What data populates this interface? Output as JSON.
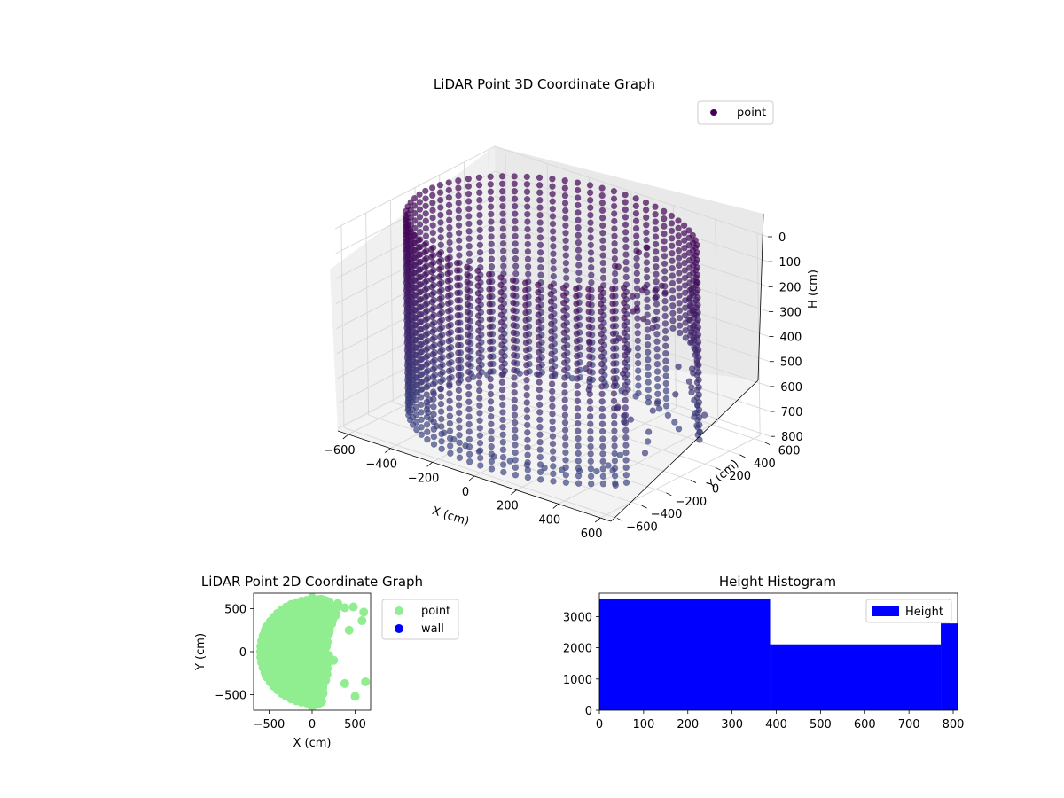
{
  "chart_data": [
    {
      "type": "scatter",
      "projection": "3d",
      "title": "LiDAR Point 3D Coordinate Graph",
      "xlabel": "X (cm)",
      "ylabel": "Y (cm)",
      "zlabel": "H (cm)",
      "xlim": [
        -650,
        650
      ],
      "ylim": [
        -650,
        650
      ],
      "zlim": [
        810,
        0
      ],
      "z_axis_inverted": true,
      "xticks": [
        "−600",
        "−400",
        "−200",
        "0",
        "200",
        "400",
        "600"
      ],
      "yticks": [
        "−600",
        "−400",
        "−200",
        "0",
        "200",
        "400",
        "600"
      ],
      "zticks": [
        "0",
        "100",
        "200",
        "300",
        "400",
        "500",
        "600",
        "700",
        "800"
      ],
      "grid": true,
      "colormap": "viridis (dark purple to slate blue)",
      "legend": [
        {
          "label": "point",
          "color": "#440154"
        }
      ],
      "legend_position": "upper right",
      "description_of_data": "cylindrical wall of points of radius ~600 cm spanning H 0-800 cm, open on the +X side, with scattered points and a vertical cluster near x~500"
    },
    {
      "type": "scatter",
      "title": "LiDAR Point 2D Coordinate Graph",
      "xlabel": "X (cm)",
      "ylabel": "Y (cm)",
      "xlim": [
        -680,
        680
      ],
      "ylim": [
        -680,
        680
      ],
      "xticks": [
        "−500",
        "0",
        "500"
      ],
      "yticks": [
        "−500",
        "0",
        "500"
      ],
      "series": [
        {
          "name": "point",
          "color": "#90ee90"
        },
        {
          "name": "wall",
          "color": "#0000ff"
        }
      ],
      "legend_position": "outside right"
    },
    {
      "type": "bar",
      "title": "Height Histogram",
      "xlim": [
        0,
        810
      ],
      "ylim": [
        0,
        3750
      ],
      "xticks": [
        "0",
        "100",
        "200",
        "300",
        "400",
        "500",
        "600",
        "700",
        "800"
      ],
      "yticks": [
        "0",
        "1000",
        "2000",
        "3000"
      ],
      "bins": [
        {
          "start": 0,
          "end": 386,
          "count": 3580
        },
        {
          "start": 386,
          "end": 772,
          "count": 2110
        },
        {
          "start": 772,
          "end": 810,
          "count": 2780
        }
      ],
      "series": [
        {
          "name": "Height",
          "color": "#0000ff"
        }
      ],
      "legend_position": "upper right"
    }
  ]
}
